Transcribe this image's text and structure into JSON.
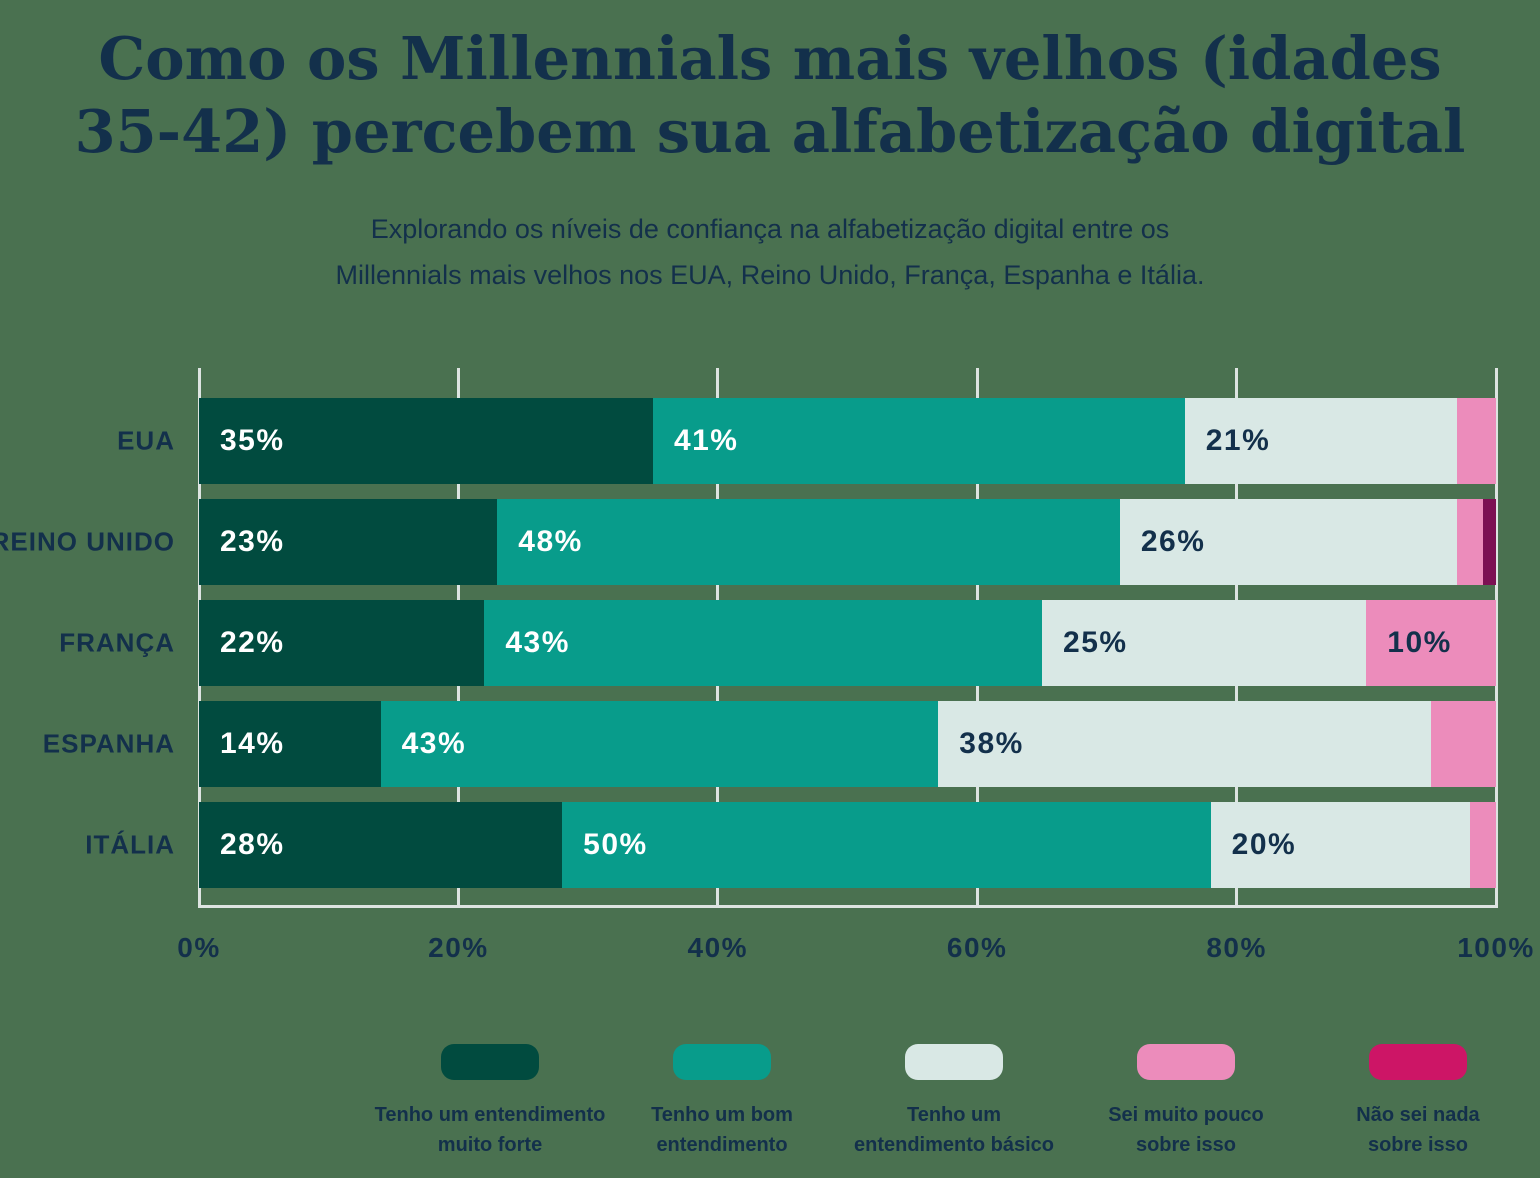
{
  "header": {
    "title_lines": [
      "Como os Millennials mais velhos (idades",
      "35-42) percebem sua alfabetização digital"
    ],
    "subtitle_lines": [
      "Explorando os níveis de confiança na alfabetização digital entre os",
      "Millennials mais velhos nos EUA, Reino Unido, França, Espanha e Itália."
    ]
  },
  "colors": {
    "background": "#4a7150",
    "gridline": "#dde4e1",
    "text_navy": "#13304b",
    "label_on_dark": "#ffffff"
  },
  "chart_data": {
    "type": "bar",
    "orientation": "horizontal",
    "stacked": true,
    "unit": "%",
    "title": "Como os Millennials mais velhos (idades 35-42) percebem sua alfabetização digital",
    "subtitle": "Explorando os níveis de confiança na alfabetização digital entre os Millennials mais velhos nos EUA, Reino Unido, França, Espanha e Itália.",
    "categories": [
      "EUA",
      "REINO UNIDO",
      "FRANÇA",
      "ESPANHA",
      "ITÁLIA"
    ],
    "series": [
      {
        "name": "Tenho um entendimento muito forte",
        "label_lines": [
          "Tenho um entendimento",
          "muito forte"
        ],
        "values": [
          35,
          23,
          22,
          14,
          28
        ],
        "bar_color": "#014b3f",
        "legend_color": "#014b3f",
        "label_color": "#ffffff"
      },
      {
        "name": "Tenho um bom entendimento",
        "label_lines": [
          "Tenho um bom",
          "entendimento"
        ],
        "values": [
          41,
          48,
          43,
          43,
          50
        ],
        "bar_color": "#089c8b",
        "legend_color": "#089c8b",
        "label_color": "#ffffff"
      },
      {
        "name": "Tenho um entendimento básico",
        "label_lines": [
          "Tenho um",
          "entendimento básico"
        ],
        "values": [
          21,
          26,
          25,
          38,
          20
        ],
        "bar_color": "#d9e8e5",
        "legend_color": "#d9e8e5",
        "label_color": "#13304b"
      },
      {
        "name": "Sei muito pouco sobre isso",
        "label_lines": [
          "Sei muito pouco",
          "sobre isso"
        ],
        "values": [
          3,
          2,
          10,
          5,
          2
        ],
        "bar_color": "#ec8cbb",
        "legend_color": "#ec8cbb",
        "label_color": "#13304b"
      },
      {
        "name": "Não sei nada sobre isso",
        "label_lines": [
          "Não sei nada",
          "sobre isso"
        ],
        "values": [
          0,
          1,
          0,
          0,
          0
        ],
        "bar_color": "#7c1053",
        "legend_color": "#cd1566",
        "label_color": "#ffffff"
      }
    ],
    "x_ticks": [
      "0%",
      "20%",
      "40%",
      "60%",
      "80%",
      "100%"
    ],
    "xlim": [
      0,
      100
    ],
    "grid": true,
    "legend_position": "bottom",
    "min_label_value": 10
  }
}
